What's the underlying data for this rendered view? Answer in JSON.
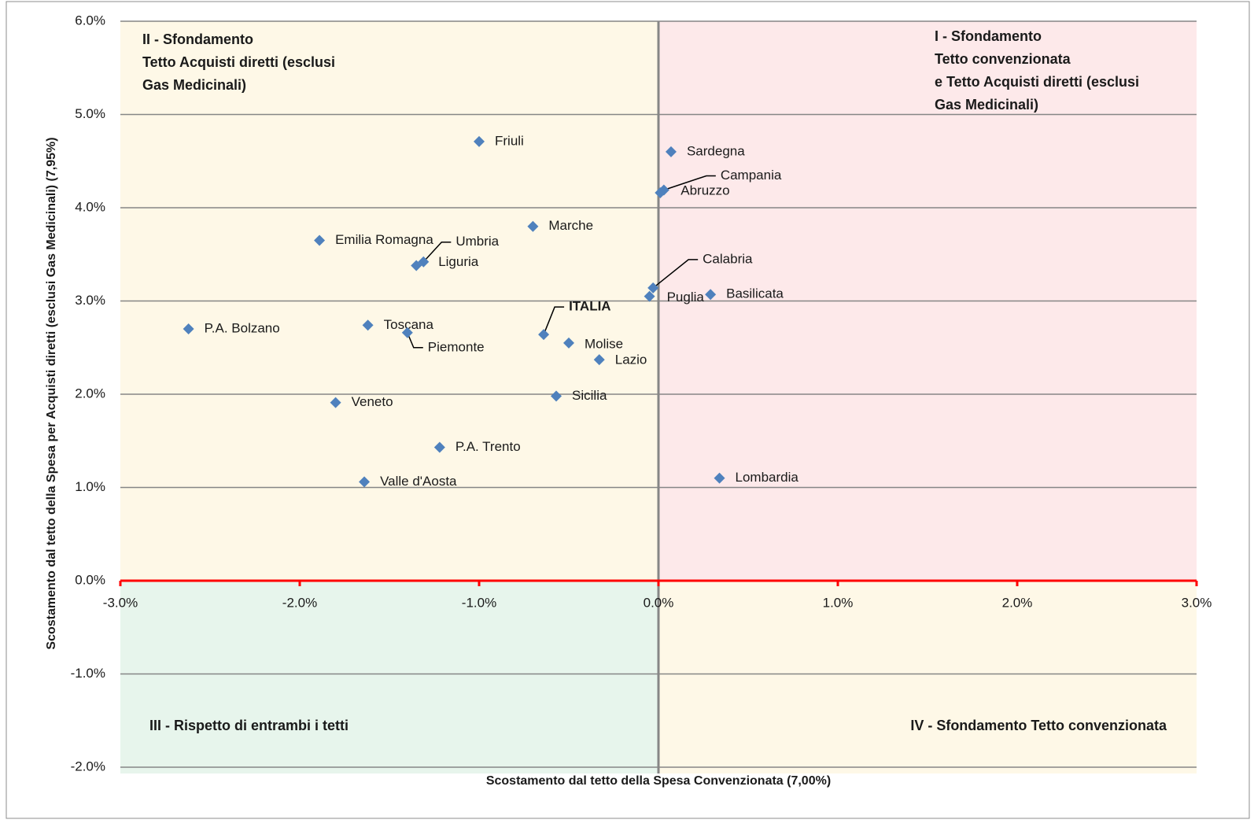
{
  "chart_data": {
    "type": "scatter",
    "x_label": "Scostamento dal tetto della Spesa Convenzionata  (7,00%)",
    "y_label": "Scostamento dal tetto della Spesa per Acquisti diretti   (esclusi Gas Medicinali) (7,95%)",
    "xlim": [
      -3,
      3
    ],
    "ylim": [
      -2,
      6
    ],
    "xticks": [
      {
        "value": -3,
        "label": "-3.0%"
      },
      {
        "value": -2,
        "label": "-2.0%"
      },
      {
        "value": -1,
        "label": "-1.0%"
      },
      {
        "value": 0,
        "label": "0.0%"
      },
      {
        "value": 1,
        "label": "1.0%"
      },
      {
        "value": 2,
        "label": "2.0%"
      },
      {
        "value": 3,
        "label": "3.0%"
      }
    ],
    "yticks": [
      {
        "value": -2,
        "label": "-2.0%"
      },
      {
        "value": -1,
        "label": "-1.0%"
      },
      {
        "value": 0,
        "label": "0.0%"
      },
      {
        "value": 1,
        "label": "1.0%"
      },
      {
        "value": 2,
        "label": "2.0%"
      },
      {
        "value": 3,
        "label": "3.0%"
      },
      {
        "value": 4,
        "label": "4.0%"
      },
      {
        "value": 5,
        "label": "5.0%"
      },
      {
        "value": 6,
        "label": "6.0%"
      }
    ],
    "grid": true,
    "color": "#4f81bd",
    "point_labels": [
      "Friuli",
      "Sardegna",
      "Campania",
      "Abruzzo",
      "Marche",
      "Emilia Romagna",
      "Umbria",
      "Liguria",
      "Calabria",
      "Puglia",
      "Basilicata",
      "ITALIA",
      "P.A. Bolzano",
      "Toscana",
      "Piemonte",
      "Molise",
      "Lazio",
      "Sicilia",
      "Veneto",
      "P.A. Trento",
      "Valle d'Aosta",
      "Lombardia"
    ],
    "x": [
      -1.0,
      0.07,
      0.03,
      0.01,
      -0.7,
      -1.89,
      -1.31,
      -1.35,
      -0.03,
      -0.05,
      0.29,
      -0.64,
      -2.62,
      -1.62,
      -1.4,
      -0.5,
      -0.33,
      -0.57,
      -1.8,
      -1.22,
      -1.64,
      0.34
    ],
    "y": [
      4.71,
      4.6,
      4.19,
      4.16,
      3.8,
      3.65,
      3.42,
      3.38,
      3.14,
      3.05,
      3.07,
      2.64,
      2.7,
      2.74,
      2.66,
      2.55,
      2.37,
      1.98,
      1.91,
      1.43,
      1.06,
      1.1
    ],
    "quadrants": {
      "I": [
        "I - Sfondamento",
        "Tetto convenzionata",
        "e Tetto Acquisti diretti (esclusi",
        "Gas Medicinali)"
      ],
      "II": [
        "II - Sfondamento",
        "Tetto Acquisti diretti (esclusi",
        "Gas Medicinali)"
      ],
      "III": [
        "III - Rispetto di entrambi i tetti"
      ],
      "IV": [
        "IV - Sfondamento Tetto convenzionata"
      ]
    }
  }
}
